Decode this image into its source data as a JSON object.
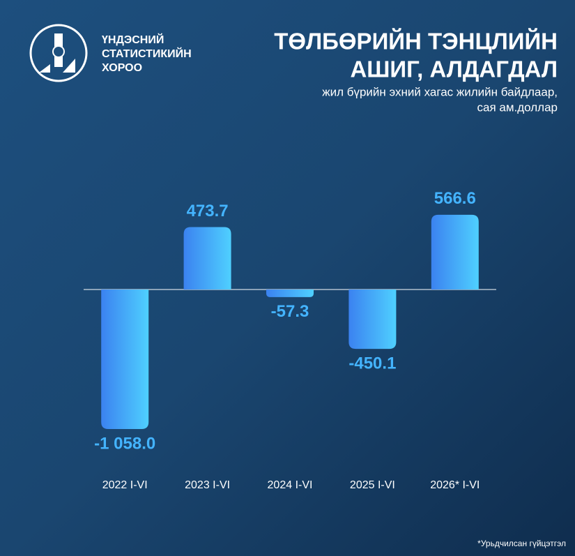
{
  "chart_data": {
    "type": "bar",
    "organization": [
      "ҮНДЭСНИЙ",
      "СТАТИСТИКИЙН",
      "ХОРОО"
    ],
    "title": [
      "ТӨЛБӨРИЙН ТЭНЦЛИЙН",
      "АШИГ, АЛДАГДАЛ"
    ],
    "subtitle": [
      "жил бүрийн эхний хагас жилийн байдлаар,",
      "сая ам.доллар"
    ],
    "categories": [
      "2022 I-VI",
      "2023 I-VI",
      "2024 I-VI",
      "2025 I-VI",
      "2026* I-VI"
    ],
    "values": [
      -1058.0,
      473.7,
      -57.3,
      -450.1,
      566.6
    ],
    "value_labels": [
      "-1 058.0",
      "473.7",
      "-57.3",
      "-450.1",
      "566.6"
    ],
    "color": "#44b4ff",
    "footnote": "*Урьдчилсан гүйцэтгэл"
  }
}
